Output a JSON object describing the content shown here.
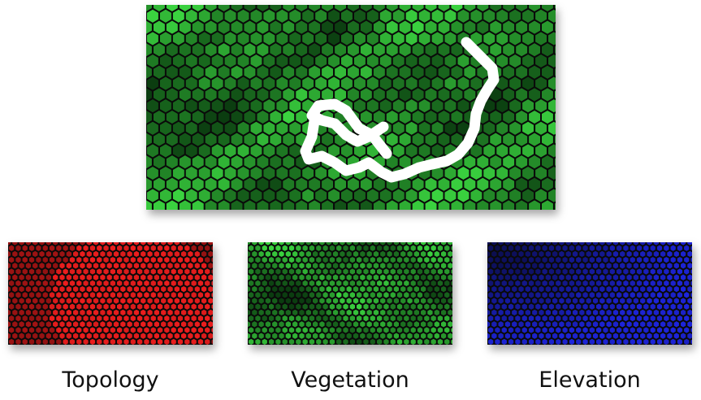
{
  "layers": [
    {
      "key": "topology",
      "label": "Topology",
      "palette": "red"
    },
    {
      "key": "vegetation",
      "label": "Vegetation",
      "palette": "green"
    },
    {
      "key": "elevation",
      "label": "Elevation",
      "palette": "blue"
    }
  ],
  "combined_map": {
    "palette": "green",
    "path_color": "#ffffff"
  },
  "colors": {
    "hex_outline": "#0a0a0a",
    "red_dark": "#6a0c0c",
    "red_light": "#f01e1e",
    "green_dark": "#0b3d10",
    "green_light": "#3ad23f",
    "blue_dark": "#05051a",
    "blue_light": "#1e26e6"
  }
}
